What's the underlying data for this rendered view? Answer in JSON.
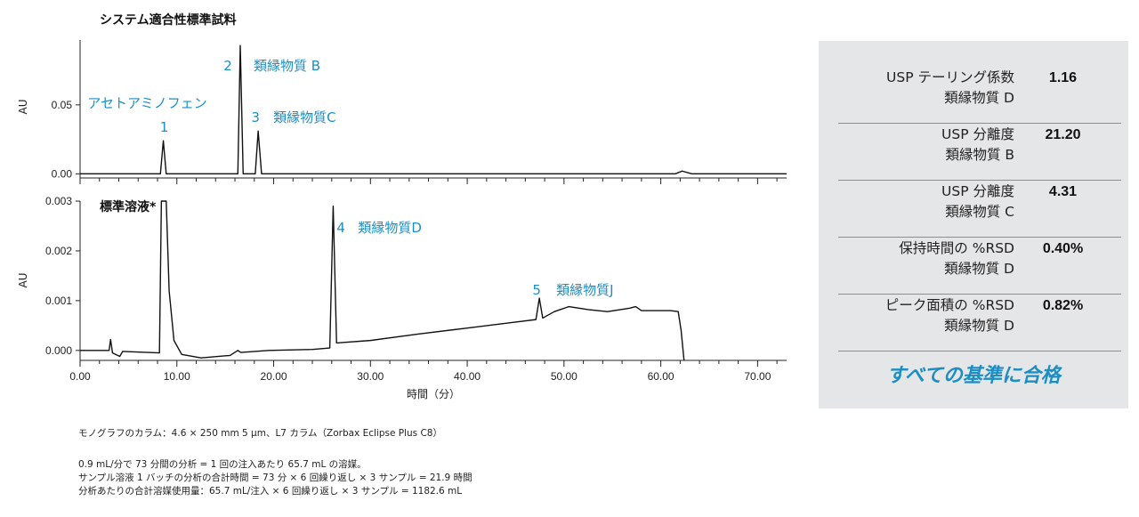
{
  "chart_data": [
    {
      "type": "line",
      "title": "システム適合性標準試料",
      "ylabel": "AU",
      "xlim": [
        0,
        73
      ],
      "ylim": [
        -0.003,
        0.097
      ],
      "yticks": [
        {
          "value": 0.05,
          "label": "0.05"
        },
        {
          "value": 0.0,
          "label": "0.00"
        }
      ],
      "series": [
        {
          "values": [
            [
              0,
              0.0
            ],
            [
              8.3,
              0.0
            ],
            [
              8.6,
              0.024
            ],
            [
              8.9,
              0.0
            ],
            [
              16.3,
              0.0
            ],
            [
              16.55,
              0.093
            ],
            [
              16.85,
              0.0
            ],
            [
              18.1,
              0.0
            ],
            [
              18.4,
              0.031
            ],
            [
              18.75,
              0.0
            ],
            [
              61.5,
              0.0
            ],
            [
              62.2,
              0.002
            ],
            [
              63.2,
              0.0
            ],
            [
              73,
              0.0
            ]
          ]
        }
      ],
      "peak_labels": [
        {
          "text": "アセトアミノフェン",
          "x": 8.6
        },
        {
          "text": "1",
          "x": 8.6
        },
        {
          "text": "2",
          "x": 16.55
        },
        {
          "text": "類縁物質 B",
          "x": 16.55
        },
        {
          "text": "3",
          "x": 18.4
        },
        {
          "text": "類縁物質C",
          "x": 18.4
        }
      ]
    },
    {
      "type": "line",
      "title": "標準溶液*",
      "ylabel": "AU",
      "xlabel": "時間（分）",
      "xlim": [
        0,
        73
      ],
      "ylim": [
        -0.0002,
        0.003
      ],
      "xticks": [
        {
          "value": 0,
          "label": "0.00"
        },
        {
          "value": 10,
          "label": "10.00"
        },
        {
          "value": 20,
          "label": "20.00"
        },
        {
          "value": 30,
          "label": "30.00"
        },
        {
          "value": 40,
          "label": "40.00"
        },
        {
          "value": 50,
          "label": "50.00"
        },
        {
          "value": 60,
          "label": "60.00"
        },
        {
          "value": 70,
          "label": "70.00"
        }
      ],
      "yticks": [
        {
          "value": 0.003,
          "label": "0.003"
        },
        {
          "value": 0.002,
          "label": "0.002"
        },
        {
          "value": 0.001,
          "label": "0.001"
        },
        {
          "value": 0.0,
          "label": "0.000"
        }
      ],
      "series": [
        {
          "values": [
            [
              0,
              0.0
            ],
            [
              3.0,
              0.0
            ],
            [
              3.15,
              0.00022
            ],
            [
              3.35,
              -5e-05
            ],
            [
              4.1,
              -0.00012
            ],
            [
              4.4,
              -2e-05
            ],
            [
              8.2,
              -5e-05
            ],
            [
              8.4,
              0.003
            ],
            [
              8.9,
              0.003
            ],
            [
              9.2,
              0.0012
            ],
            [
              9.7,
              0.0002
            ],
            [
              10.5,
              -8e-05
            ],
            [
              12.5,
              -0.00015
            ],
            [
              15.5,
              -0.0001
            ],
            [
              16.3,
              0.0
            ],
            [
              16.6,
              -4e-05
            ],
            [
              19.5,
              0.0
            ],
            [
              24.0,
              2e-05
            ],
            [
              25.8,
              5e-05
            ],
            [
              26.15,
              0.0029
            ],
            [
              26.5,
              0.00015
            ],
            [
              30,
              0.0002
            ],
            [
              35,
              0.00033
            ],
            [
              40,
              0.00045
            ],
            [
              45,
              0.00057
            ],
            [
              47.1,
              0.00062
            ],
            [
              47.45,
              0.00105
            ],
            [
              47.8,
              0.00065
            ],
            [
              49.0,
              0.00078
            ],
            [
              50.5,
              0.00088
            ],
            [
              52.5,
              0.00082
            ],
            [
              54.5,
              0.00078
            ],
            [
              56.8,
              0.00085
            ],
            [
              57.4,
              0.00088
            ],
            [
              58.0,
              0.0008
            ],
            [
              61.0,
              0.0008
            ],
            [
              61.8,
              0.00078
            ],
            [
              62.1,
              0.0004
            ],
            [
              62.4,
              -0.0002
            ]
          ]
        }
      ],
      "peak_labels": [
        {
          "text": "4",
          "x": 26.15
        },
        {
          "text": "類縁物質D",
          "x": 26.15
        },
        {
          "text": "5",
          "x": 47.45
        },
        {
          "text": "類縁物質J",
          "x": 47.45
        }
      ]
    }
  ],
  "results": {
    "rows": [
      {
        "label1": "USP テーリング係数",
        "label2": "類縁物質 D",
        "value": "1.16"
      },
      {
        "label1": "USP 分離度",
        "label2": "類縁物質 B",
        "value": "21.20"
      },
      {
        "label1": "USP 分離度",
        "label2": "類縁物質 C",
        "value": "4.31"
      },
      {
        "label1": "保持時間の %RSD",
        "label2": "類縁物質 D",
        "value": "0.40%"
      },
      {
        "label1": "ピーク面積の %RSD",
        "label2": "類縁物質 D",
        "value": "0.82%"
      }
    ],
    "verdict": "すべての基準に合格"
  },
  "notes": {
    "column": "モノグラフのカラム：4.6 × 250 mm 5 µm、L7 カラム（Zorbax Eclipse Plus C8）",
    "line1": "0.9 mL/分で 73 分間の分析 = 1 回の注入あたり 65.7 mL の溶媒。",
    "line2": "サンプル溶液 1 バッチの分析の合計時間 = 73 分 × 6 回繰り返し × 3 サンプル = 21.9 時間",
    "line3": "分析あたりの合計溶媒使用量：65.7 mL/注入 × 6 回繰り返し × 3 サンプル = 1182.6 mL"
  }
}
